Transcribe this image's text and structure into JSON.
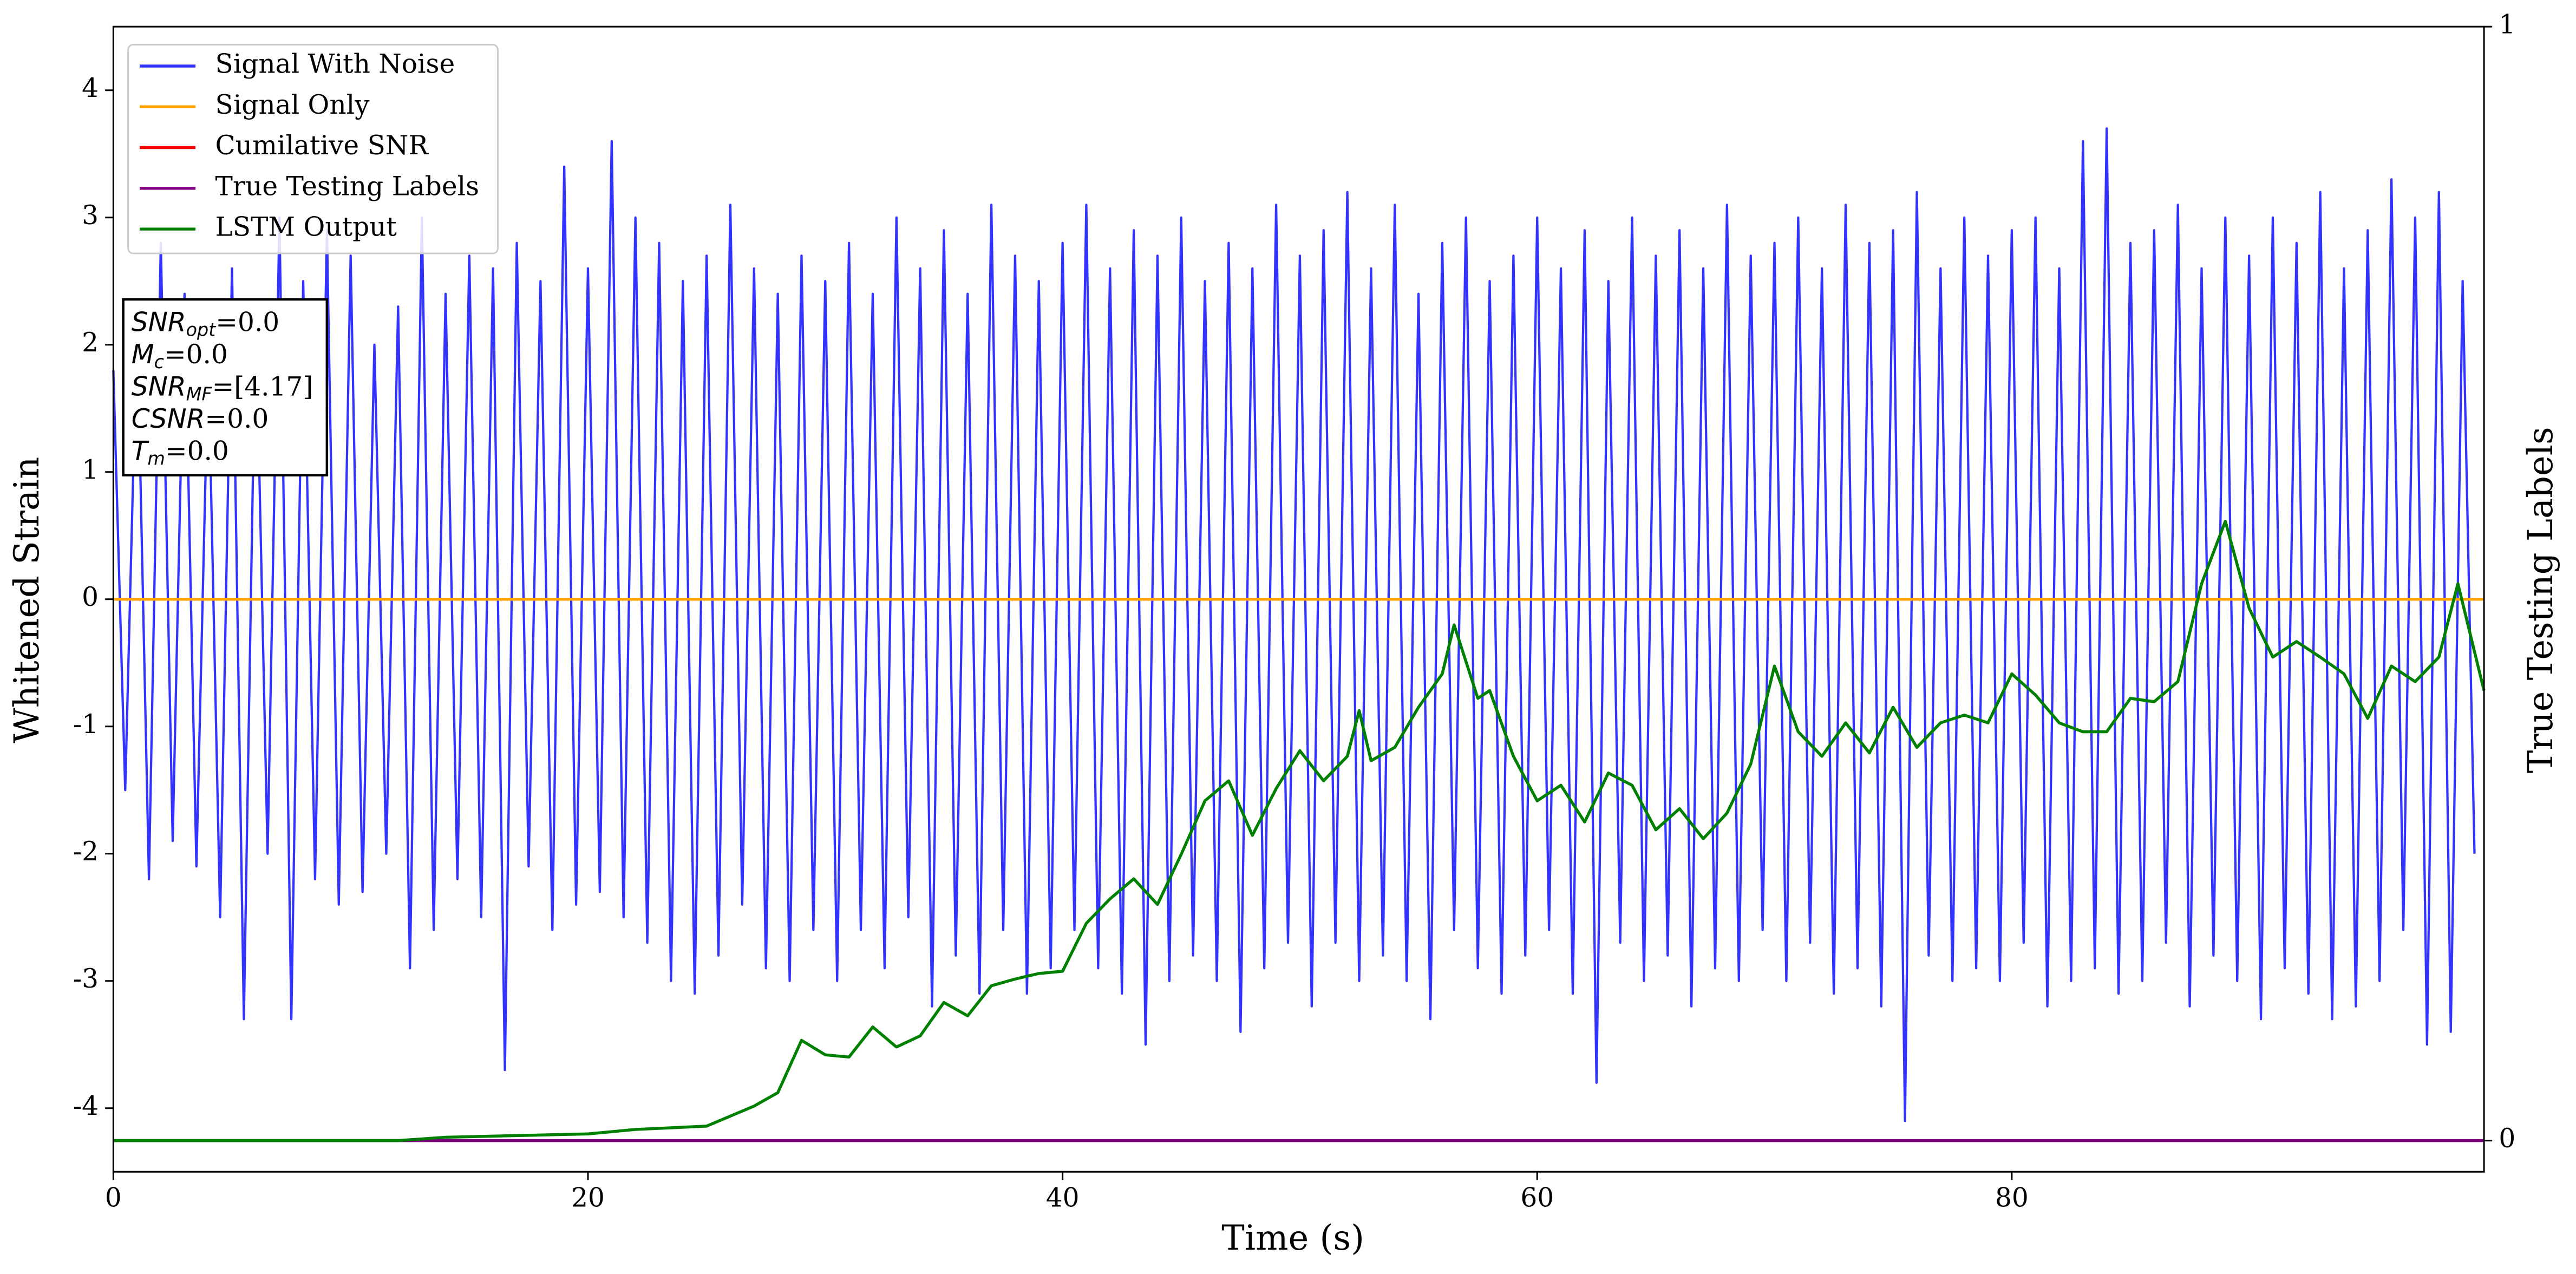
{
  "chart_data": {
    "type": "line",
    "xlabel": "Time (s)",
    "ylabel": "Whitened Strain",
    "y2label": "True Testing Labels",
    "xlim": [
      0,
      99.9
    ],
    "ylim": [
      -4.5,
      4.5
    ],
    "y2lim": [
      -0.028,
      1
    ],
    "xticks": [
      0,
      20,
      40,
      60,
      80
    ],
    "yticks": [
      -4,
      -3,
      -2,
      -1,
      0,
      1,
      2,
      3,
      4
    ],
    "y2ticks": [
      0,
      1
    ],
    "legend": "upper left",
    "annotations": [
      {
        "base": "SNR",
        "sub": "opt",
        "rest": "=0.0"
      },
      {
        "base": "M",
        "sub": "c",
        "rest": "=0.0"
      },
      {
        "base": "SNR",
        "sub": "MF",
        "rest": "=[4.17]"
      },
      {
        "base": "CSNR",
        "sub": null,
        "rest": "=0.0"
      },
      {
        "base": "T",
        "sub": "m",
        "rest": "=0.0"
      }
    ],
    "series": [
      {
        "name": "Signal With Noise",
        "color": "#3333ff",
        "axis": "y",
        "x": [
          0,
          0.5,
          1,
          1.5,
          2,
          2.5,
          3,
          3.5,
          4,
          4.5,
          5,
          5.5,
          6,
          6.5,
          7,
          7.5,
          8,
          8.5,
          9,
          9.5,
          10,
          10.5,
          11,
          11.5,
          12,
          12.5,
          13,
          13.5,
          14,
          14.5,
          15,
          15.5,
          16,
          16.5,
          17,
          17.5,
          18,
          18.5,
          19,
          19.5,
          20,
          20.5,
          21,
          21.5,
          22,
          22.5,
          23,
          23.5,
          24,
          24.5,
          25,
          25.5,
          26,
          26.5,
          27,
          27.5,
          28,
          28.5,
          29,
          29.5,
          30,
          30.5,
          31,
          31.5,
          32,
          32.5,
          33,
          33.5,
          34,
          34.5,
          35,
          35.5,
          36,
          36.5,
          37,
          37.5,
          38,
          38.5,
          39,
          39.5,
          40,
          40.5,
          41,
          41.5,
          42,
          42.5,
          43,
          43.5,
          44,
          44.5,
          45,
          45.5,
          46,
          46.5,
          47,
          47.5,
          48,
          48.5,
          49,
          49.5,
          50,
          50.5,
          51,
          51.5,
          52,
          52.5,
          53,
          53.5,
          54,
          54.5,
          55,
          55.5,
          56,
          56.5,
          57,
          57.5,
          58,
          58.5,
          59,
          59.5,
          60,
          60.5,
          61,
          61.5,
          62,
          62.5,
          63,
          63.5,
          64,
          64.5,
          65,
          65.5,
          66,
          66.5,
          67,
          67.5,
          68,
          68.5,
          69,
          69.5,
          70,
          70.5,
          71,
          71.5,
          72,
          72.5,
          73,
          73.5,
          74,
          74.5,
          75,
          75.5,
          76,
          76.5,
          77,
          77.5,
          78,
          78.5,
          79,
          79.5,
          80,
          80.5,
          81,
          81.5,
          82,
          82.5,
          83,
          83.5,
          84,
          84.5,
          85,
          85.5,
          86,
          86.5,
          87,
          87.5,
          88,
          88.5,
          89,
          89.5,
          90,
          90.5,
          91,
          91.5,
          92,
          92.5,
          93,
          93.5,
          94,
          94.5,
          95,
          95.5,
          96,
          96.5,
          97,
          97.5,
          98,
          98.5,
          99,
          99.5
        ],
        "values": [
          1.8,
          -1.5,
          2.2,
          -2.2,
          2.8,
          -1.9,
          2.4,
          -2.1,
          1.9,
          -2.5,
          2.6,
          -3.3,
          2.3,
          -2.0,
          3.0,
          -3.3,
          2.5,
          -2.2,
          2.9,
          -2.4,
          2.7,
          -2.3,
          2.0,
          -2.0,
          2.3,
          -2.9,
          3.0,
          -2.6,
          2.4,
          -2.2,
          2.7,
          -2.5,
          2.6,
          -3.7,
          2.8,
          -2.1,
          2.5,
          -2.6,
          3.4,
          -2.4,
          2.6,
          -2.3,
          3.6,
          -2.5,
          3.0,
          -2.7,
          2.8,
          -3.0,
          2.5,
          -3.1,
          2.7,
          -2.8,
          3.1,
          -2.4,
          2.6,
          -2.9,
          2.4,
          -3.0,
          2.7,
          -2.6,
          2.5,
          -3.0,
          2.8,
          -2.6,
          2.4,
          -2.9,
          3.0,
          -2.5,
          2.6,
          -3.2,
          2.9,
          -2.8,
          2.4,
          -3.1,
          3.1,
          -2.6,
          2.7,
          -3.1,
          2.5,
          -2.9,
          2.8,
          -2.6,
          3.1,
          -2.9,
          2.6,
          -3.1,
          2.9,
          -3.5,
          2.7,
          -3.0,
          3.0,
          -2.8,
          2.5,
          -3.0,
          2.8,
          -3.4,
          2.6,
          -2.9,
          3.1,
          -2.7,
          2.7,
          -3.2,
          2.9,
          -2.7,
          3.2,
          -3.0,
          2.6,
          -2.8,
          3.1,
          -3.0,
          2.4,
          -3.3,
          2.8,
          -2.6,
          3.0,
          -2.9,
          2.5,
          -3.1,
          2.7,
          -2.8,
          3.0,
          -2.6,
          2.6,
          -3.1,
          2.9,
          -3.8,
          2.5,
          -2.7,
          3.0,
          -3.0,
          2.7,
          -2.8,
          2.9,
          -3.2,
          2.6,
          -2.9,
          3.1,
          -3.0,
          2.7,
          -2.6,
          2.8,
          -3.0,
          3.0,
          -2.7,
          2.6,
          -3.1,
          3.1,
          -2.9,
          2.8,
          -3.2,
          2.9,
          -4.1,
          3.2,
          -2.8,
          2.6,
          -3.0,
          3.0,
          -2.9,
          2.7,
          -3.0,
          2.9,
          -2.7,
          3.0,
          -3.2,
          2.6,
          -3.0,
          3.6,
          -2.9,
          3.7,
          -3.1,
          2.8,
          -3.0,
          2.9,
          -2.7,
          3.1,
          -3.2,
          2.6,
          -2.8,
          3.0,
          -3.0,
          2.7,
          -3.3,
          3.0,
          -2.9,
          2.8,
          -3.1,
          3.2,
          -3.3,
          2.6,
          -3.2,
          2.9,
          -3.0,
          3.3,
          -2.6,
          3.0,
          -3.5,
          3.2,
          -3.4,
          2.5,
          -2.0
        ]
      },
      {
        "name": "Signal Only",
        "color": "#ffa500",
        "axis": "y",
        "x": [
          0,
          99.9
        ],
        "values": [
          0,
          0
        ]
      },
      {
        "name": "Cumilative SNR",
        "color": "#ff0000",
        "axis": "y",
        "x": [],
        "values": []
      },
      {
        "name": "True Testing Labels",
        "color": "#800080",
        "axis": "y2",
        "x": [
          0,
          99.9
        ],
        "values": [
          0,
          0
        ]
      },
      {
        "name": "LSTM Output",
        "color": "#008000",
        "axis": "y2",
        "x": [
          0,
          12,
          14,
          16,
          20,
          22,
          25,
          27,
          28,
          29,
          30,
          31,
          32,
          33,
          34,
          35,
          36,
          37,
          38,
          39,
          40,
          41,
          42,
          43,
          44,
          45,
          46,
          47,
          48,
          49,
          50,
          51,
          52,
          52.5,
          53,
          54,
          55,
          56,
          56.5,
          57.5,
          58,
          59,
          60,
          61,
          62,
          63,
          64,
          65,
          66,
          67,
          68,
          69,
          70,
          71,
          72,
          73,
          74,
          75,
          76,
          77,
          78,
          79,
          80,
          81,
          82,
          83,
          84,
          85,
          86,
          87,
          88,
          89,
          90,
          91,
          92,
          93,
          94,
          95,
          96,
          97,
          98,
          98.8,
          99.9
        ],
        "values": [
          0,
          0,
          0.003,
          0.004,
          0.006,
          0.01,
          0.013,
          0.031,
          0.043,
          0.09,
          0.077,
          0.075,
          0.102,
          0.084,
          0.094,
          0.124,
          0.112,
          0.139,
          0.145,
          0.15,
          0.152,
          0.195,
          0.217,
          0.235,
          0.212,
          0.257,
          0.305,
          0.323,
          0.274,
          0.316,
          0.35,
          0.323,
          0.345,
          0.386,
          0.341,
          0.353,
          0.389,
          0.419,
          0.463,
          0.397,
          0.404,
          0.345,
          0.305,
          0.319,
          0.286,
          0.33,
          0.319,
          0.279,
          0.298,
          0.271,
          0.294,
          0.338,
          0.426,
          0.367,
          0.345,
          0.375,
          0.348,
          0.389,
          0.353,
          0.375,
          0.382,
          0.375,
          0.419,
          0.4,
          0.375,
          0.367,
          0.367,
          0.397,
          0.394,
          0.412,
          0.5,
          0.556,
          0.478,
          0.434,
          0.448,
          0.434,
          0.419,
          0.379,
          0.426,
          0.412,
          0.434,
          0.5,
          0.404
        ]
      }
    ]
  }
}
